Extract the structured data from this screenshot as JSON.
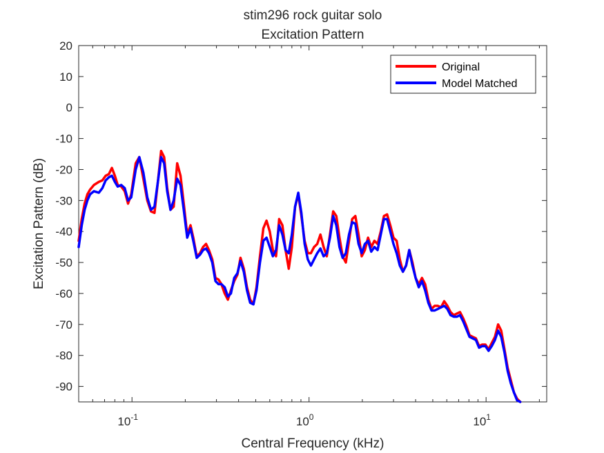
{
  "chart_data": {
    "type": "line",
    "title": "stim296 rock guitar solo",
    "subtitle": "Excitation Pattern",
    "xlabel": "Central Frequency (kHz)",
    "ylabel": "Excitation Pattern (dB)",
    "xscale": "log",
    "xlim": [
      0.05,
      22
    ],
    "ylim": [
      -95,
      20
    ],
    "x_ticks": [
      {
        "value": 0.1,
        "base": "10",
        "exp": "-1"
      },
      {
        "value": 1,
        "base": "10",
        "exp": "0"
      },
      {
        "value": 10,
        "base": "10",
        "exp": "1"
      }
    ],
    "y_ticks": [
      20,
      10,
      0,
      -10,
      -20,
      -30,
      -40,
      -50,
      -60,
      -70,
      -80,
      -90
    ],
    "y_tick_labels": [
      "20",
      "10",
      "0",
      "-10",
      "-20",
      "-30",
      "-40",
      "-50",
      "-60",
      "-70",
      "-80",
      "-90"
    ],
    "grid": false,
    "legend_position": "top-right",
    "series": [
      {
        "name": "Original",
        "color": "#ff0000",
        "points": [
          [
            0.05,
            -43
          ],
          [
            0.052,
            -36
          ],
          [
            0.054,
            -31
          ],
          [
            0.056,
            -28
          ],
          [
            0.058,
            -26.5
          ],
          [
            0.061,
            -25
          ],
          [
            0.065,
            -24
          ],
          [
            0.068,
            -23.5
          ],
          [
            0.071,
            -22
          ],
          [
            0.074,
            -21.5
          ],
          [
            0.077,
            -19.5
          ],
          [
            0.08,
            -22
          ],
          [
            0.083,
            -25
          ],
          [
            0.087,
            -25.5
          ],
          [
            0.091,
            -27
          ],
          [
            0.095,
            -31
          ],
          [
            0.099,
            -28
          ],
          [
            0.105,
            -18
          ],
          [
            0.11,
            -16
          ],
          [
            0.116,
            -23
          ],
          [
            0.122,
            -30
          ],
          [
            0.128,
            -33.5
          ],
          [
            0.134,
            -34
          ],
          [
            0.14,
            -24
          ],
          [
            0.146,
            -14
          ],
          [
            0.152,
            -16
          ],
          [
            0.158,
            -26
          ],
          [
            0.165,
            -33
          ],
          [
            0.172,
            -32
          ],
          [
            0.18,
            -18
          ],
          [
            0.188,
            -22
          ],
          [
            0.196,
            -31
          ],
          [
            0.205,
            -41
          ],
          [
            0.214,
            -38
          ],
          [
            0.222,
            -42
          ],
          [
            0.232,
            -48
          ],
          [
            0.242,
            -47
          ],
          [
            0.252,
            -45
          ],
          [
            0.262,
            -44
          ],
          [
            0.272,
            -46
          ],
          [
            0.284,
            -49
          ],
          [
            0.296,
            -55
          ],
          [
            0.308,
            -55.5
          ],
          [
            0.32,
            -57
          ],
          [
            0.334,
            -60
          ],
          [
            0.348,
            -62
          ],
          [
            0.362,
            -59
          ],
          [
            0.378,
            -56
          ],
          [
            0.394,
            -54
          ],
          [
            0.41,
            -48.5
          ],
          [
            0.428,
            -52
          ],
          [
            0.446,
            -58
          ],
          [
            0.465,
            -62
          ],
          [
            0.485,
            -63.5
          ],
          [
            0.505,
            -58
          ],
          [
            0.528,
            -48
          ],
          [
            0.552,
            -39
          ],
          [
            0.575,
            -36.5
          ],
          [
            0.6,
            -40
          ],
          [
            0.625,
            -46
          ],
          [
            0.651,
            -48
          ],
          [
            0.678,
            -36
          ],
          [
            0.707,
            -38
          ],
          [
            0.737,
            -46
          ],
          [
            0.768,
            -52
          ],
          [
            0.8,
            -45
          ],
          [
            0.834,
            -32
          ],
          [
            0.869,
            -28
          ],
          [
            0.905,
            -35
          ],
          [
            0.944,
            -43
          ],
          [
            0.984,
            -47
          ],
          [
            1.025,
            -47
          ],
          [
            1.068,
            -45
          ],
          [
            1.113,
            -44
          ],
          [
            1.16,
            -41
          ],
          [
            1.209,
            -45
          ],
          [
            1.26,
            -48
          ],
          [
            1.313,
            -41
          ],
          [
            1.369,
            -33.5
          ],
          [
            1.426,
            -35
          ],
          [
            1.486,
            -42
          ],
          [
            1.549,
            -48
          ],
          [
            1.614,
            -50
          ],
          [
            1.682,
            -43
          ],
          [
            1.753,
            -36
          ],
          [
            1.827,
            -35
          ],
          [
            1.904,
            -41
          ],
          [
            1.984,
            -48
          ],
          [
            2.068,
            -46
          ],
          [
            2.155,
            -42
          ],
          [
            2.246,
            -45
          ],
          [
            2.34,
            -43
          ],
          [
            2.439,
            -44
          ],
          [
            2.542,
            -40
          ],
          [
            2.649,
            -35
          ],
          [
            2.76,
            -34.5
          ],
          [
            2.876,
            -38
          ],
          [
            2.998,
            -42
          ],
          [
            3.124,
            -43
          ],
          [
            3.255,
            -49
          ],
          [
            3.392,
            -53
          ],
          [
            3.535,
            -51
          ],
          [
            3.684,
            -46
          ],
          [
            3.839,
            -50
          ],
          [
            4.001,
            -55
          ],
          [
            4.169,
            -57
          ],
          [
            4.345,
            -55
          ],
          [
            4.528,
            -57
          ],
          [
            4.719,
            -62
          ],
          [
            4.917,
            -65
          ],
          [
            5.124,
            -64
          ],
          [
            5.34,
            -64
          ],
          [
            5.565,
            -64.5
          ],
          [
            5.799,
            -62.5
          ],
          [
            6.043,
            -64
          ],
          [
            6.298,
            -66
          ],
          [
            6.563,
            -67
          ],
          [
            6.839,
            -66.5
          ],
          [
            7.127,
            -66
          ],
          [
            7.427,
            -68
          ],
          [
            7.74,
            -70.5
          ],
          [
            8.066,
            -73.5
          ],
          [
            8.405,
            -74
          ],
          [
            8.759,
            -74.5
          ],
          [
            9.128,
            -77
          ],
          [
            9.512,
            -76.5
          ],
          [
            9.913,
            -76.5
          ],
          [
            10.33,
            -78
          ],
          [
            10.77,
            -76
          ],
          [
            11.22,
            -74
          ],
          [
            11.69,
            -70
          ],
          [
            12.18,
            -72
          ],
          [
            12.7,
            -78
          ],
          [
            13.23,
            -84
          ],
          [
            13.79,
            -88
          ],
          [
            14.37,
            -92
          ],
          [
            14.97,
            -94
          ],
          [
            15.6,
            -95
          ]
        ]
      },
      {
        "name": "Model Matched",
        "color": "#0000ff",
        "points": [
          [
            0.05,
            -45
          ],
          [
            0.052,
            -38
          ],
          [
            0.054,
            -33
          ],
          [
            0.056,
            -30
          ],
          [
            0.058,
            -28
          ],
          [
            0.061,
            -27
          ],
          [
            0.065,
            -27.5
          ],
          [
            0.068,
            -26
          ],
          [
            0.071,
            -23.5
          ],
          [
            0.074,
            -22.5
          ],
          [
            0.077,
            -22
          ],
          [
            0.08,
            -24
          ],
          [
            0.083,
            -25.5
          ],
          [
            0.087,
            -25
          ],
          [
            0.091,
            -26
          ],
          [
            0.095,
            -30
          ],
          [
            0.099,
            -29
          ],
          [
            0.105,
            -20
          ],
          [
            0.11,
            -16
          ],
          [
            0.116,
            -21
          ],
          [
            0.122,
            -29
          ],
          [
            0.128,
            -33
          ],
          [
            0.134,
            -32
          ],
          [
            0.14,
            -24
          ],
          [
            0.146,
            -16
          ],
          [
            0.152,
            -18
          ],
          [
            0.158,
            -27
          ],
          [
            0.165,
            -33
          ],
          [
            0.172,
            -30
          ],
          [
            0.18,
            -23
          ],
          [
            0.188,
            -25
          ],
          [
            0.196,
            -33
          ],
          [
            0.205,
            -42
          ],
          [
            0.214,
            -39
          ],
          [
            0.222,
            -43
          ],
          [
            0.232,
            -48.5
          ],
          [
            0.242,
            -47.5
          ],
          [
            0.252,
            -46
          ],
          [
            0.262,
            -45.5
          ],
          [
            0.272,
            -47
          ],
          [
            0.284,
            -50
          ],
          [
            0.296,
            -56
          ],
          [
            0.308,
            -57
          ],
          [
            0.32,
            -57
          ],
          [
            0.334,
            -58
          ],
          [
            0.348,
            -61
          ],
          [
            0.362,
            -60
          ],
          [
            0.378,
            -55
          ],
          [
            0.394,
            -53.5
          ],
          [
            0.41,
            -49.5
          ],
          [
            0.428,
            -53
          ],
          [
            0.446,
            -59
          ],
          [
            0.465,
            -63
          ],
          [
            0.485,
            -63.5
          ],
          [
            0.505,
            -59
          ],
          [
            0.528,
            -50
          ],
          [
            0.552,
            -43
          ],
          [
            0.575,
            -42
          ],
          [
            0.6,
            -45
          ],
          [
            0.625,
            -48
          ],
          [
            0.651,
            -46
          ],
          [
            0.678,
            -38
          ],
          [
            0.707,
            -41
          ],
          [
            0.737,
            -46
          ],
          [
            0.768,
            -47
          ],
          [
            0.8,
            -41
          ],
          [
            0.834,
            -32
          ],
          [
            0.869,
            -27.5
          ],
          [
            0.905,
            -34
          ],
          [
            0.944,
            -44
          ],
          [
            0.984,
            -49
          ],
          [
            1.025,
            -51
          ],
          [
            1.068,
            -49
          ],
          [
            1.113,
            -47
          ],
          [
            1.16,
            -45.5
          ],
          [
            1.209,
            -48
          ],
          [
            1.26,
            -47
          ],
          [
            1.313,
            -42
          ],
          [
            1.369,
            -35
          ],
          [
            1.426,
            -38
          ],
          [
            1.486,
            -45
          ],
          [
            1.549,
            -48.5
          ],
          [
            1.614,
            -47
          ],
          [
            1.682,
            -41
          ],
          [
            1.753,
            -37
          ],
          [
            1.827,
            -37.5
          ],
          [
            1.904,
            -44
          ],
          [
            1.984,
            -47
          ],
          [
            2.068,
            -44
          ],
          [
            2.155,
            -43
          ],
          [
            2.246,
            -46.5
          ],
          [
            2.34,
            -45
          ],
          [
            2.439,
            -46
          ],
          [
            2.542,
            -41
          ],
          [
            2.649,
            -36
          ],
          [
            2.76,
            -36
          ],
          [
            2.876,
            -40
          ],
          [
            2.998,
            -44
          ],
          [
            3.124,
            -47
          ],
          [
            3.255,
            -51
          ],
          [
            3.392,
            -53
          ],
          [
            3.535,
            -51
          ],
          [
            3.684,
            -46
          ],
          [
            3.839,
            -51
          ],
          [
            4.001,
            -55
          ],
          [
            4.169,
            -58
          ],
          [
            4.345,
            -56
          ],
          [
            4.528,
            -59
          ],
          [
            4.719,
            -63
          ],
          [
            4.917,
            -65.5
          ],
          [
            5.124,
            -65.5
          ],
          [
            5.34,
            -65
          ],
          [
            5.565,
            -64.5
          ],
          [
            5.799,
            -64
          ],
          [
            6.043,
            -65
          ],
          [
            6.298,
            -67
          ],
          [
            6.563,
            -67.5
          ],
          [
            6.839,
            -67.5
          ],
          [
            7.127,
            -67
          ],
          [
            7.427,
            -69
          ],
          [
            7.74,
            -71.5
          ],
          [
            8.066,
            -74
          ],
          [
            8.405,
            -74.5
          ],
          [
            8.759,
            -75
          ],
          [
            9.128,
            -77.5
          ],
          [
            9.512,
            -77
          ],
          [
            9.913,
            -77
          ],
          [
            10.33,
            -78.5
          ],
          [
            10.77,
            -77
          ],
          [
            11.22,
            -75
          ],
          [
            11.69,
            -72
          ],
          [
            12.18,
            -74
          ],
          [
            12.7,
            -79
          ],
          [
            13.23,
            -85
          ],
          [
            13.79,
            -89
          ],
          [
            14.37,
            -92
          ],
          [
            14.97,
            -94.5
          ],
          [
            15.6,
            -95
          ]
        ]
      }
    ]
  }
}
